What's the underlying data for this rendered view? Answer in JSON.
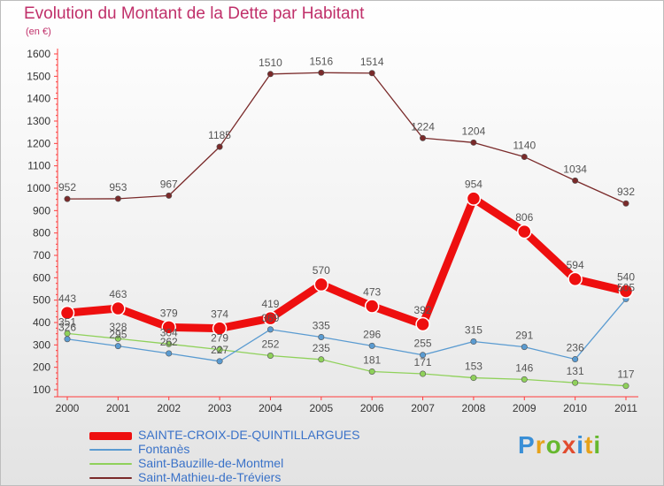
{
  "header": {
    "title": "Evolution du Montant de la Dette par Habitant",
    "subtitle": "(en €)"
  },
  "logo": {
    "text": "Proxiti",
    "colors": [
      "#3a8fd6",
      "#e6a21a",
      "#66b82e",
      "#e14c2f",
      "#3a8fd6",
      "#e6a21a",
      "#66b82e"
    ]
  },
  "chart_data": {
    "type": "line",
    "title": "Evolution du Montant de la Dette par Habitant",
    "subtitle": "(en €)",
    "x": [
      "2000",
      "2001",
      "2002",
      "2003",
      "2004",
      "2005",
      "2006",
      "2007",
      "2008",
      "2009",
      "2010",
      "2011"
    ],
    "ylim": [
      100,
      1600
    ],
    "yticks": [
      100,
      200,
      300,
      400,
      500,
      600,
      700,
      800,
      900,
      1000,
      1100,
      1200,
      1300,
      1400,
      1500,
      1600
    ],
    "grid": false,
    "legend_position": "bottom-left",
    "series": [
      {
        "name": "Saint-Mathieu-de-Tréviers",
        "color": "#7a2a2a",
        "values": [
          952,
          953,
          967,
          1185,
          1510,
          1516,
          1514,
          1224,
          1204,
          1140,
          1034,
          932
        ],
        "labels": [
          "952",
          "953",
          "967",
          "1185",
          "1510",
          "1516",
          "1514",
          "1224",
          "1204",
          "1140",
          "1034",
          "932"
        ]
      },
      {
        "name": "Saint-Bauzille-de-Montmel",
        "color": "#8fd15a",
        "values": [
          351,
          328,
          304,
          279,
          252,
          235,
          181,
          171,
          153,
          146,
          131,
          117
        ],
        "labels": [
          "351",
          "328",
          "304",
          "279",
          "252",
          "235",
          "181",
          "171",
          "153",
          "146",
          "131",
          "117"
        ]
      },
      {
        "name": "Fontanès",
        "color": "#5a9bd1",
        "values": [
          326,
          295,
          262,
          227,
          369,
          335,
          296,
          255,
          315,
          291,
          236,
          505
        ],
        "labels": [
          "326",
          "295",
          "262",
          "227",
          "369",
          "335",
          "296",
          "255",
          "315",
          "291",
          "236",
          "505"
        ]
      },
      {
        "name": "SAINTE-CROIX-DE-QUINTILLARGUES",
        "color": "#ee0f0f",
        "values": [
          443,
          463,
          379,
          374,
          419,
          570,
          473,
          392,
          954,
          806,
          594,
          540
        ],
        "labels": [
          "443",
          "463",
          "379",
          "374",
          "419",
          "570",
          "473",
          "392",
          "954",
          "806",
          "594",
          "540"
        ]
      }
    ]
  },
  "legend": [
    {
      "label": "SAINTE-CROIX-DE-QUINTILLARGUES",
      "color": "#ee0f0f",
      "text_color": "#3a72c8"
    },
    {
      "label": "Fontanès",
      "color": "#5a9bd1",
      "text_color": "#3a72c8"
    },
    {
      "label": "Saint-Bauzille-de-Montmel",
      "color": "#8fd15a",
      "text_color": "#3a72c8"
    },
    {
      "label": "Saint-Mathieu-de-Tréviers",
      "color": "#7a2a2a",
      "text_color": "#3a72c8"
    }
  ]
}
